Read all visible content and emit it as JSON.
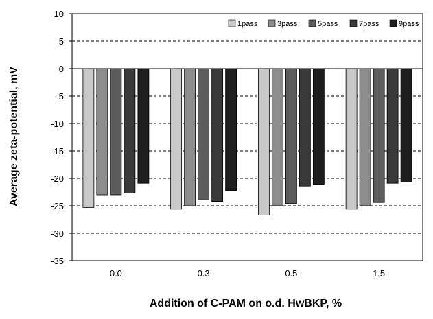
{
  "chart_data": {
    "type": "bar",
    "title": "",
    "xlabel": "Addition of C-PAM on o.d. HwBKP, %",
    "ylabel": "Average zeta-potential, mV",
    "categories": [
      "0.0",
      "0.3",
      "0.5",
      "1.5"
    ],
    "series": [
      {
        "name": "1pass",
        "color": "#c8c8c8",
        "values": [
          -25.3,
          -25.6,
          -26.7,
          -25.6
        ]
      },
      {
        "name": "3pass",
        "color": "#8c8c8c",
        "values": [
          -23.0,
          -25.0,
          -25.0,
          -25.0
        ]
      },
      {
        "name": "5pass",
        "color": "#5c5c5c",
        "values": [
          -23.0,
          -23.9,
          -24.6,
          -24.4
        ]
      },
      {
        "name": "7pass",
        "color": "#3a3a3a",
        "values": [
          -22.7,
          -24.2,
          -21.4,
          -20.9
        ]
      },
      {
        "name": "9pass",
        "color": "#1e1e1e",
        "values": [
          -20.9,
          -22.2,
          -21.1,
          -20.7
        ]
      }
    ],
    "ylim": [
      -35,
      10
    ],
    "yticks": [
      10,
      5,
      0,
      -5,
      -10,
      -15,
      -20,
      -25,
      -30,
      -35
    ],
    "grid": "horizontal dashed",
    "legend": "top-right"
  }
}
